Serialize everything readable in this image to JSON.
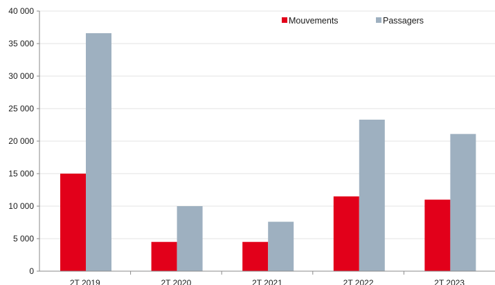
{
  "chart_data": {
    "type": "bar",
    "categories": [
      "2T 2019",
      "2T 2020",
      "2T 2021",
      "2T 2022",
      "2T 2023"
    ],
    "series": [
      {
        "name": "Mouvements",
        "color": "#e2001a",
        "values": [
          15000,
          4500,
          4500,
          11500,
          11000
        ]
      },
      {
        "name": "Passagers",
        "color": "#9eb0c0",
        "values": [
          36600,
          10000,
          7600,
          23300,
          21100
        ]
      }
    ],
    "ylim": [
      0,
      40000
    ],
    "yticks": [
      0,
      5000,
      10000,
      15000,
      20000,
      25000,
      30000,
      35000,
      40000
    ],
    "ytick_labels": [
      "0",
      "5 000",
      "10 000",
      "15 000",
      "20 000",
      "25 000",
      "30 000",
      "35 000",
      "40 000"
    ],
    "grid": true,
    "legend_position": "top-right",
    "title": "",
    "xlabel": "",
    "ylabel": ""
  }
}
